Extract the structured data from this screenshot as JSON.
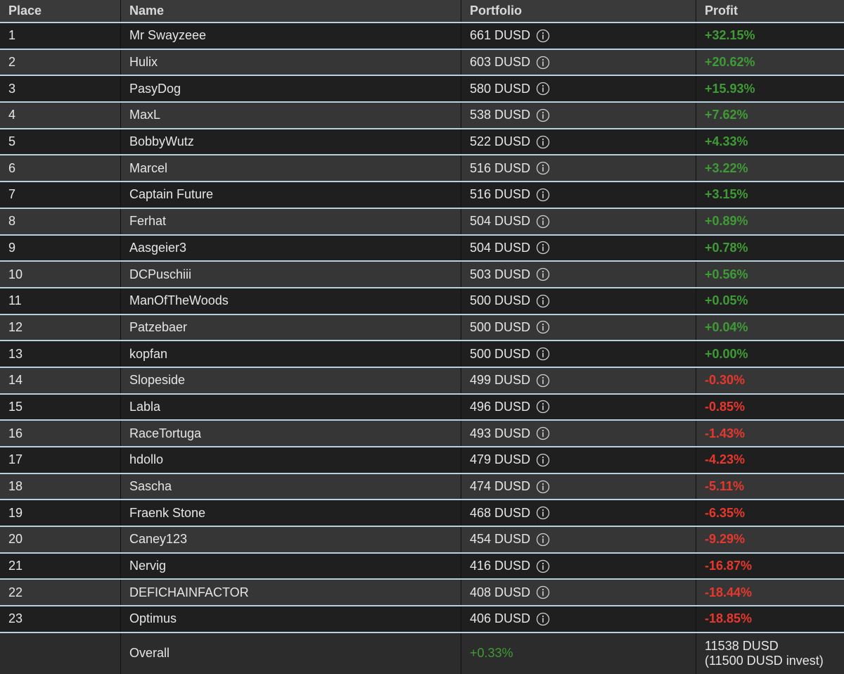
{
  "table": {
    "header": [
      "Place",
      "Name",
      "Portfolio",
      "Profit"
    ],
    "rows": [
      [
        "1",
        "Mr Swayzeee",
        "661 DUSD",
        "+32.15%"
      ],
      [
        "2",
        "Hulix",
        "603 DUSD",
        "+20.62%"
      ],
      [
        "3",
        "PasyDog",
        "580 DUSD",
        "+15.93%"
      ],
      [
        "4",
        "MaxL",
        "538 DUSD",
        "+7.62%"
      ],
      [
        "5",
        "BobbyWutz",
        "522 DUSD",
        "+4.33%"
      ],
      [
        "6",
        "Marcel",
        "516 DUSD",
        "+3.22%"
      ],
      [
        "7",
        "Captain Future",
        "516 DUSD",
        "+3.15%"
      ],
      [
        "8",
        "Ferhat",
        "504 DUSD",
        "+0.89%"
      ],
      [
        "9",
        "Aasgeier3",
        "504 DUSD",
        "+0.78%"
      ],
      [
        "10",
        "DCPuschiii",
        "503 DUSD",
        "+0.56%"
      ],
      [
        "11",
        "ManOfTheWoods",
        "500 DUSD",
        "+0.05%"
      ],
      [
        "12",
        "Patzebaer",
        "500 DUSD",
        "+0.04%"
      ],
      [
        "13",
        "kopfan",
        "500 DUSD",
        "+0.00%"
      ],
      [
        "14",
        "Slopeside",
        "499 DUSD",
        "-0.30%"
      ],
      [
        "15",
        "Labla",
        "496 DUSD",
        "-0.85%"
      ],
      [
        "16",
        "RaceTortuga",
        "493 DUSD",
        "-1.43%"
      ],
      [
        "17",
        "hdollo",
        "479 DUSD",
        "-4.23%"
      ],
      [
        "18",
        "Sascha",
        "474 DUSD",
        "-5.11%"
      ],
      [
        "19",
        "Fraenk Stone",
        "468 DUSD",
        "-6.35%"
      ],
      [
        "20",
        "Caney123",
        "454 DUSD",
        "-9.29%"
      ],
      [
        "21",
        "Nervig",
        "416 DUSD",
        "-16.87%"
      ],
      [
        "22",
        "DEFICHAINFACTOR",
        "408 DUSD",
        "-18.44%"
      ],
      [
        "23",
        "Optimus",
        "406 DUSD",
        "-18.85%"
      ]
    ],
    "footer": {
      "name": "Overall",
      "portfolio": "+0.33%",
      "profit_lines": [
        "11538 DUSD",
        "(11500 DUSD invest)"
      ]
    },
    "colors": {
      "positive": "#3f9b35",
      "negative": "#e8372c"
    }
  }
}
